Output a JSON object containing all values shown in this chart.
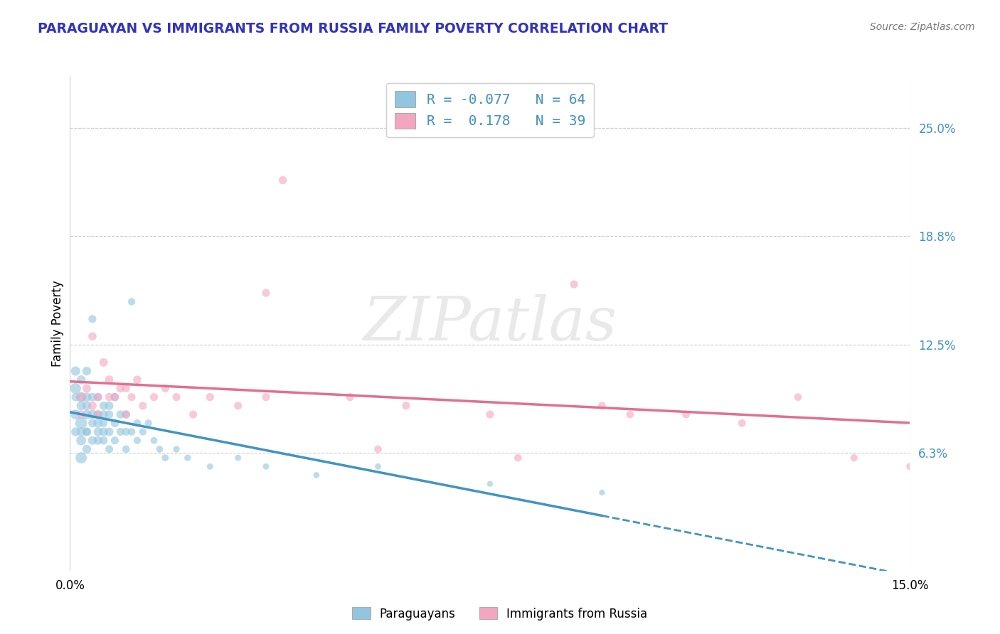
{
  "title": "PARAGUAYAN VS IMMIGRANTS FROM RUSSIA FAMILY POVERTY CORRELATION CHART",
  "source": "Source: ZipAtlas.com",
  "ylabel": "Family Poverty",
  "legend_r1": "R = -0.077",
  "legend_n1": "N = 64",
  "legend_r2": "R =  0.178",
  "legend_n2": "N = 39",
  "legend_label1": "Paraguayans",
  "legend_label2": "Immigrants from Russia",
  "blue_color": "#92c5de",
  "pink_color": "#f4a5c0",
  "blue_line_color": "#4393c3",
  "pink_line_color": "#e07090",
  "title_color": "#3333bb",
  "source_color": "#777777",
  "watermark_text": "ZIPatlas",
  "xlim": [
    0.0,
    0.15
  ],
  "ylim": [
    -0.005,
    0.28
  ],
  "right_y_ticks": [
    0.063,
    0.125,
    0.188,
    0.25
  ],
  "right_y_labels": [
    "6.3%",
    "12.5%",
    "18.8%",
    "25.0%"
  ],
  "paraguayan_x": [
    0.001,
    0.001,
    0.001,
    0.001,
    0.001,
    0.002,
    0.002,
    0.002,
    0.002,
    0.002,
    0.002,
    0.002,
    0.003,
    0.003,
    0.003,
    0.003,
    0.003,
    0.003,
    0.003,
    0.004,
    0.004,
    0.004,
    0.004,
    0.004,
    0.005,
    0.005,
    0.005,
    0.005,
    0.005,
    0.006,
    0.006,
    0.006,
    0.006,
    0.006,
    0.007,
    0.007,
    0.007,
    0.007,
    0.008,
    0.008,
    0.008,
    0.009,
    0.009,
    0.01,
    0.01,
    0.01,
    0.011,
    0.011,
    0.012,
    0.012,
    0.013,
    0.014,
    0.015,
    0.016,
    0.017,
    0.019,
    0.021,
    0.025,
    0.03,
    0.035,
    0.044,
    0.055,
    0.075,
    0.095
  ],
  "paraguayan_y": [
    0.1,
    0.11,
    0.095,
    0.075,
    0.085,
    0.08,
    0.095,
    0.09,
    0.075,
    0.06,
    0.07,
    0.105,
    0.085,
    0.09,
    0.075,
    0.065,
    0.075,
    0.095,
    0.11,
    0.085,
    0.07,
    0.08,
    0.095,
    0.14,
    0.08,
    0.07,
    0.085,
    0.075,
    0.095,
    0.075,
    0.085,
    0.07,
    0.09,
    0.08,
    0.075,
    0.085,
    0.065,
    0.09,
    0.08,
    0.07,
    0.095,
    0.075,
    0.085,
    0.075,
    0.065,
    0.085,
    0.075,
    0.15,
    0.08,
    0.07,
    0.075,
    0.08,
    0.07,
    0.065,
    0.06,
    0.065,
    0.06,
    0.055,
    0.06,
    0.055,
    0.05,
    0.055,
    0.045,
    0.04
  ],
  "paraguayan_sizes": [
    120,
    90,
    70,
    80,
    100,
    150,
    110,
    90,
    80,
    130,
    100,
    80,
    90,
    85,
    75,
    80,
    70,
    85,
    80,
    90,
    80,
    70,
    75,
    65,
    85,
    75,
    70,
    80,
    65,
    80,
    75,
    70,
    75,
    65,
    75,
    70,
    65,
    75,
    70,
    65,
    70,
    65,
    70,
    65,
    60,
    65,
    60,
    55,
    60,
    55,
    55,
    55,
    50,
    50,
    50,
    45,
    45,
    40,
    40,
    40,
    40,
    40,
    35,
    35
  ],
  "russia_x": [
    0.002,
    0.002,
    0.003,
    0.004,
    0.004,
    0.005,
    0.005,
    0.006,
    0.007,
    0.007,
    0.008,
    0.009,
    0.01,
    0.01,
    0.011,
    0.012,
    0.013,
    0.015,
    0.017,
    0.019,
    0.022,
    0.025,
    0.03,
    0.035,
    0.038,
    0.05,
    0.06,
    0.075,
    0.09,
    0.095,
    0.1,
    0.11,
    0.12,
    0.13,
    0.14,
    0.15,
    0.035,
    0.055,
    0.08
  ],
  "russia_y": [
    0.095,
    0.085,
    0.1,
    0.09,
    0.13,
    0.085,
    0.095,
    0.115,
    0.095,
    0.105,
    0.095,
    0.1,
    0.085,
    0.1,
    0.095,
    0.105,
    0.09,
    0.095,
    0.1,
    0.095,
    0.085,
    0.095,
    0.09,
    0.095,
    0.22,
    0.095,
    0.09,
    0.085,
    0.16,
    0.09,
    0.085,
    0.085,
    0.08,
    0.095,
    0.06,
    0.055,
    0.155,
    0.065,
    0.06
  ],
  "russia_sizes": [
    80,
    70,
    75,
    75,
    70,
    70,
    75,
    75,
    70,
    75,
    70,
    70,
    70,
    65,
    65,
    70,
    65,
    65,
    65,
    65,
    65,
    65,
    65,
    65,
    70,
    65,
    65,
    65,
    65,
    60,
    60,
    60,
    60,
    60,
    55,
    55,
    65,
    60,
    60
  ]
}
